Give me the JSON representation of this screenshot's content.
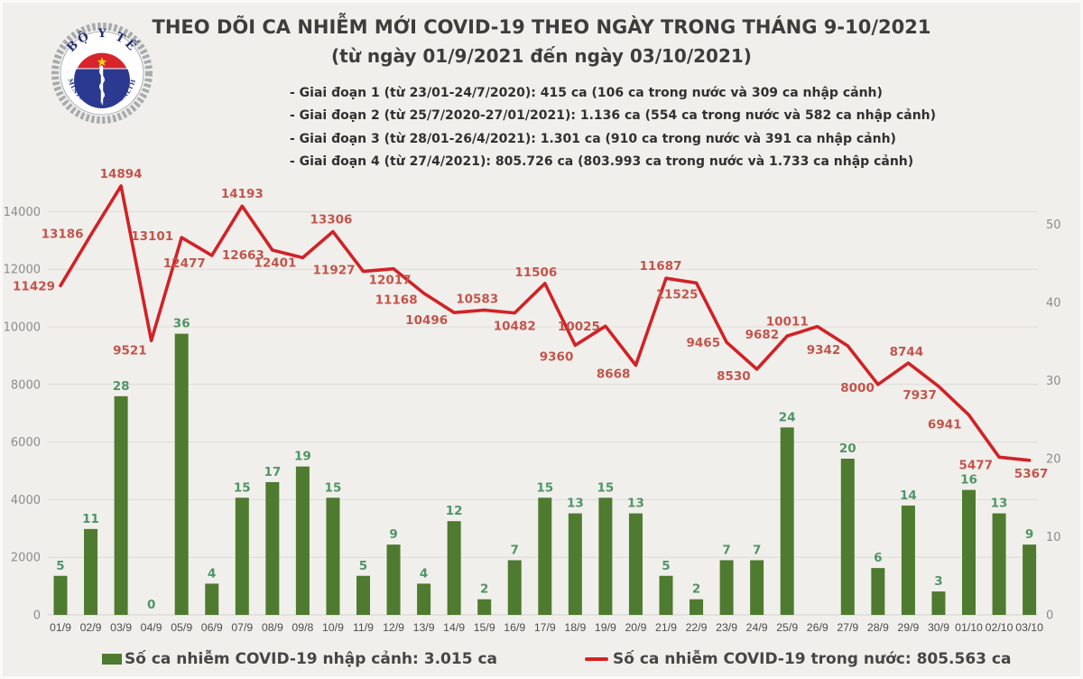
{
  "header": {
    "title_line1": "THEO DÕI CA NHIỄM MỚI COVID-19 THEO NGÀY TRONG THÁNG 9-10/2021",
    "title_line2": "(từ ngày 01/9/2021 đến ngày 03/10/2021)",
    "phases": [
      "- Giai đoạn 1 (từ 23/01-24/7/2020): 415 ca (106 ca trong nước và 309 ca nhập cảnh)",
      "- Giai đoạn 2 (từ 25/7/2020-27/01/2021): 1.136 ca (554 ca trong nước và 582 ca nhập cảnh)",
      "- Giai đoạn 3 (từ 28/01-26/4/2021): 1.301 ca (910 ca trong nước và 391 ca nhập cảnh)",
      "- Giai đoạn 4 (từ 27/4/2021): 805.726 ca (803.993 ca trong nước và 1.733 ca nhập cảnh)"
    ]
  },
  "logo": {
    "top_text": "BỘ Y TẾ",
    "bottom_text": "MINISTRY OF HEALTH"
  },
  "legend": {
    "bar_label": "Số ca nhiễm COVID-19 nhập cảnh: 3.015 ca",
    "line_label": "Số ca nhiễm COVID-19 trong nước: 805.563 ca"
  },
  "colors": {
    "bar": "#4e7b2f",
    "bar_label": "#4f9566",
    "line": "#d12226",
    "line_label": "#c2554b",
    "grid": "#dedbd8",
    "axis_line": "#d3d0cd",
    "logo_navy": "#2b3990",
    "logo_red": "#d6252c",
    "logo_star": "#f7d417"
  },
  "chart_data": {
    "type": "combo_bar_line",
    "title": "THEO DÕI CA NHIỄM MỚI COVID-19 THEO NGÀY TRONG THÁNG 9-10/2021 (từ ngày 01/9/2021 đến ngày 03/10/2021)",
    "grid": true,
    "legend_position": "bottom",
    "categories": [
      "01/9",
      "02/9",
      "03/9",
      "04/9",
      "05/9",
      "06/9",
      "07/9",
      "08/9",
      "09/8",
      "10/9",
      "11/9",
      "12/9",
      "13/9",
      "14/9",
      "15/9",
      "16/9",
      "17/9",
      "18/9",
      "19/9",
      "20/9",
      "21/9",
      "22/9",
      "23/9",
      "24/9",
      "25/9",
      "26/9",
      "27/9",
      "28/9",
      "29/9",
      "30/9",
      "01/10",
      "02/10",
      "03/10"
    ],
    "left_axis": {
      "label": "",
      "min": 0,
      "max": 15000,
      "ticks": [
        0,
        2000,
        4000,
        6000,
        8000,
        10000,
        12000,
        14000
      ]
    },
    "right_axis": {
      "label": "",
      "min": 0,
      "max": 50,
      "ticks": [
        0,
        10,
        20,
        30,
        40,
        50
      ]
    },
    "series": [
      {
        "name": "Số ca nhiễm COVID-19 nhập cảnh",
        "type": "bar",
        "axis": "right",
        "total_label": "3.015 ca",
        "values": [
          5,
          11,
          28,
          0,
          36,
          4,
          15,
          17,
          19,
          15,
          5,
          9,
          4,
          12,
          2,
          7,
          15,
          13,
          15,
          13,
          5,
          2,
          7,
          7,
          24,
          null,
          20,
          6,
          14,
          3,
          16,
          13,
          9
        ]
      },
      {
        "name": "Số ca nhiễm COVID-19 trong nước",
        "type": "line",
        "axis": "left",
        "total_label": "805.563 ca",
        "values": [
          11429,
          13186,
          14894,
          9521,
          13101,
          12477,
          14193,
          12663,
          12401,
          13306,
          11927,
          12017,
          11168,
          10496,
          10583,
          10482,
          11506,
          9360,
          10025,
          8668,
          11687,
          11525,
          9465,
          8530,
          9682,
          10011,
          9342,
          8000,
          8744,
          7937,
          6941,
          5477,
          5367
        ]
      }
    ]
  }
}
